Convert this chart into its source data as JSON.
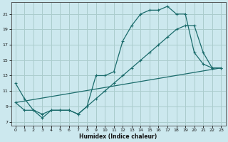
{
  "xlabel": "Humidex (Indice chaleur)",
  "bg_color": "#cce8ee",
  "grid_color": "#aacccc",
  "line_color": "#1a6b6b",
  "xlim": [
    -0.5,
    23.5
  ],
  "ylim": [
    6.5,
    22.5
  ],
  "xticks": [
    0,
    1,
    2,
    3,
    4,
    5,
    6,
    7,
    8,
    9,
    10,
    11,
    12,
    13,
    14,
    15,
    16,
    17,
    18,
    19,
    20,
    21,
    22,
    23
  ],
  "yticks": [
    7,
    9,
    11,
    13,
    15,
    17,
    19,
    21
  ],
  "line1_x": [
    0,
    1,
    2,
    3,
    4,
    5,
    6,
    7,
    8,
    9,
    10,
    11,
    12,
    13,
    14,
    15,
    16,
    17,
    18,
    19,
    20,
    21,
    22,
    23
  ],
  "line1_y": [
    12,
    10,
    8.5,
    7.5,
    8.5,
    8.5,
    8.5,
    8,
    9,
    13,
    13,
    13.5,
    17.5,
    19.5,
    21,
    21.5,
    21.5,
    22,
    21,
    21,
    16,
    14.5,
    14,
    14
  ],
  "line2_x": [
    0,
    1,
    2,
    3,
    4,
    5,
    6,
    7,
    8,
    9,
    10,
    11,
    12,
    13,
    14,
    15,
    16,
    17,
    18,
    19,
    20,
    21,
    22,
    23
  ],
  "line2_y": [
    9.5,
    8.5,
    8.5,
    8,
    8.5,
    8.5,
    8.5,
    8,
    9,
    10,
    11,
    12,
    13,
    14,
    15,
    16,
    17,
    18,
    19,
    19.5,
    19.5,
    16,
    14,
    14
  ],
  "line3_x": [
    0,
    23
  ],
  "line3_y": [
    9.5,
    14
  ]
}
